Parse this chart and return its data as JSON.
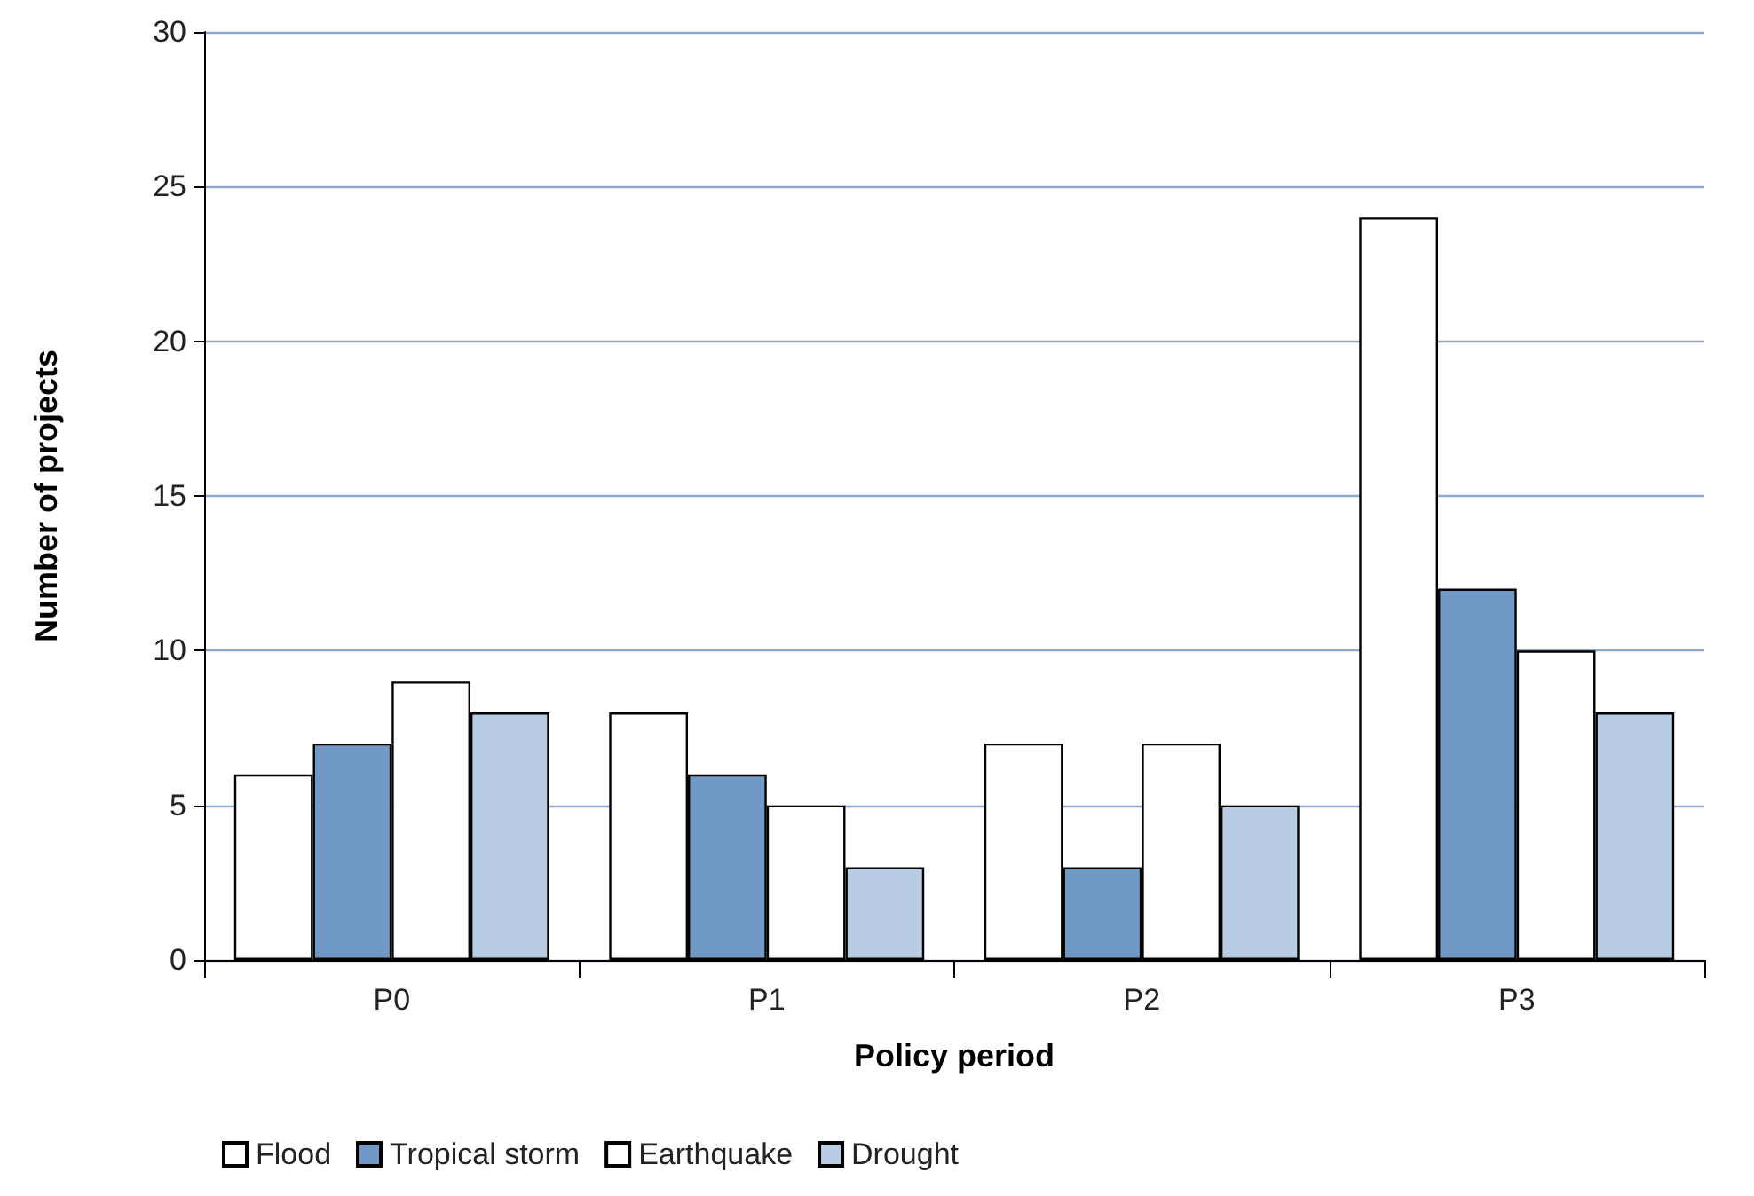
{
  "chart_data": {
    "type": "bar",
    "xlabel": "Policy period",
    "ylabel": "Number of projects",
    "categories": [
      "P0",
      "P1",
      "P2",
      "P3"
    ],
    "series": [
      {
        "name": "Flood",
        "color": "#ffffff",
        "values": [
          6,
          8,
          7,
          24
        ]
      },
      {
        "name": "Tropical storm",
        "color": "#7199c6",
        "values": [
          7,
          6,
          3,
          12
        ]
      },
      {
        "name": "Earthquake",
        "color": "#ffffff",
        "values": [
          9,
          5,
          7,
          10
        ]
      },
      {
        "name": "Drought",
        "color": "#b8cce4",
        "values": [
          8,
          3,
          5,
          8
        ]
      }
    ],
    "ylim": [
      0,
      30
    ],
    "yticks": [
      0,
      5,
      10,
      15,
      20,
      25,
      30
    ],
    "grid": "y",
    "legend": "bottom left"
  }
}
